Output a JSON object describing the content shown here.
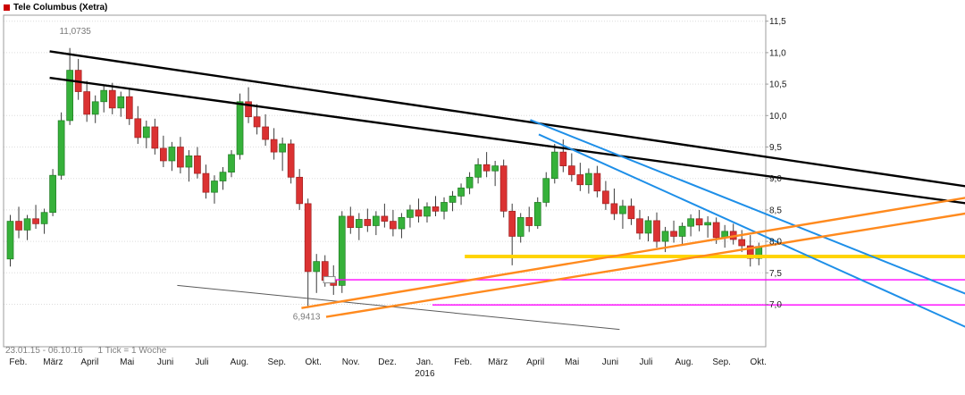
{
  "header": {
    "title": "Tele Columbus (Xetra)"
  },
  "footer": {
    "range": "23.01.15 - 06.10.16",
    "tick_info": "1 Tick = 1 Woche"
  },
  "chart_data": {
    "type": "candlestick",
    "instrument": "Tele Columbus",
    "exchange": "Xetra",
    "interval": "1 Woche",
    "date_range": {
      "start": "23.01.15",
      "end": "06.10.16"
    },
    "ohlc_format": [
      "open",
      "high",
      "low",
      "close"
    ],
    "y_axis": {
      "side": "right",
      "range": [
        6.35,
        11.58
      ],
      "ticks": [
        {
          "label": "11,5",
          "value": 11.5
        },
        {
          "label": "11,0",
          "value": 11.0
        },
        {
          "label": "10,5",
          "value": 10.5
        },
        {
          "label": "10,0",
          "value": 10.0
        },
        {
          "label": "9,5",
          "value": 9.5
        },
        {
          "label": "9,0",
          "value": 9.0
        },
        {
          "label": "8,5",
          "value": 8.5
        },
        {
          "label": "8,0",
          "value": 8.0
        },
        {
          "label": "7,5",
          "value": 7.5
        },
        {
          "label": "7,0",
          "value": 7.0
        }
      ]
    },
    "x_axis": {
      "months": [
        {
          "label": "Feb.",
          "week": 1.3
        },
        {
          "label": "März",
          "week": 5.4
        },
        {
          "label": "April",
          "week": 9.7
        },
        {
          "label": "Mai",
          "week": 14.1
        },
        {
          "label": "Juni",
          "week": 18.6
        },
        {
          "label": "Juli",
          "week": 22.9
        },
        {
          "label": "Aug.",
          "week": 27.3
        },
        {
          "label": "Sep.",
          "week": 31.7
        },
        {
          "label": "Okt.",
          "week": 36.0
        },
        {
          "label": "Nov.",
          "week": 40.4
        },
        {
          "label": "Dez.",
          "week": 44.7
        },
        {
          "label": "Jan.",
          "week": 49.1
        },
        {
          "label": "Feb.",
          "week": 53.6
        },
        {
          "label": "März",
          "week": 57.7
        },
        {
          "label": "April",
          "week": 62.1
        },
        {
          "label": "Mai",
          "week": 66.4
        },
        {
          "label": "Juni",
          "week": 70.9
        },
        {
          "label": "Juli",
          "week": 75.1
        },
        {
          "label": "Aug.",
          "week": 79.6
        },
        {
          "label": "Sep.",
          "week": 84.0
        },
        {
          "label": "Okt.",
          "week": 88.3
        }
      ],
      "year": {
        "label": "2016",
        "week": 49.1
      }
    },
    "annotations": {
      "high": {
        "text": "11,0735",
        "value": 11.0735,
        "week": 8.0,
        "price": 11.3
      },
      "low": {
        "text": "6,9413",
        "value": 6.9413,
        "week": 35.2,
        "price": 6.76
      }
    },
    "candles": [
      [
        7.72,
        8.42,
        7.6,
        8.32
      ],
      [
        8.32,
        8.55,
        8.05,
        8.18
      ],
      [
        8.18,
        8.42,
        8.02,
        8.36
      ],
      [
        8.36,
        8.58,
        8.2,
        8.28
      ],
      [
        8.28,
        8.52,
        8.12,
        8.46
      ],
      [
        8.46,
        9.15,
        8.4,
        9.05
      ],
      [
        9.05,
        10.05,
        8.98,
        9.92
      ],
      [
        9.92,
        11.0735,
        9.85,
        10.72
      ],
      [
        10.72,
        10.9,
        10.25,
        10.38
      ],
      [
        10.38,
        10.55,
        9.9,
        10.02
      ],
      [
        10.02,
        10.32,
        9.88,
        10.22
      ],
      [
        10.22,
        10.48,
        10.05,
        10.4
      ],
      [
        10.4,
        10.52,
        10.02,
        10.12
      ],
      [
        10.12,
        10.38,
        9.98,
        10.3
      ],
      [
        10.3,
        10.42,
        9.85,
        9.95
      ],
      [
        9.95,
        10.15,
        9.55,
        9.65
      ],
      [
        9.65,
        9.92,
        9.48,
        9.82
      ],
      [
        9.82,
        9.95,
        9.38,
        9.48
      ],
      [
        9.48,
        9.68,
        9.18,
        9.28
      ],
      [
        9.28,
        9.58,
        9.12,
        9.5
      ],
      [
        9.5,
        9.66,
        9.08,
        9.18
      ],
      [
        9.18,
        9.45,
        8.95,
        9.36
      ],
      [
        9.36,
        9.5,
        9.0,
        9.08
      ],
      [
        9.08,
        9.22,
        8.68,
        8.78
      ],
      [
        8.78,
        9.05,
        8.6,
        8.96
      ],
      [
        8.96,
        9.18,
        8.82,
        9.1
      ],
      [
        9.1,
        9.45,
        9.02,
        9.38
      ],
      [
        9.38,
        10.35,
        9.3,
        10.22
      ],
      [
        10.22,
        10.45,
        9.88,
        9.98
      ],
      [
        9.98,
        10.18,
        9.7,
        9.82
      ],
      [
        9.82,
        10.02,
        9.52,
        9.62
      ],
      [
        9.62,
        9.8,
        9.3,
        9.42
      ],
      [
        9.42,
        9.65,
        9.12,
        9.55
      ],
      [
        9.55,
        9.62,
        8.92,
        9.02
      ],
      [
        9.02,
        9.15,
        8.5,
        8.6
      ],
      [
        8.6,
        8.68,
        6.9413,
        7.52
      ],
      [
        7.52,
        7.8,
        7.18,
        7.68
      ],
      [
        7.68,
        7.78,
        7.28,
        7.38
      ],
      [
        7.38,
        7.62,
        7.15,
        7.3
      ],
      [
        7.3,
        8.48,
        7.18,
        8.4
      ],
      [
        8.4,
        8.55,
        8.12,
        8.22
      ],
      [
        8.22,
        8.45,
        8.02,
        8.35
      ],
      [
        8.35,
        8.52,
        8.15,
        8.25
      ],
      [
        8.25,
        8.48,
        8.1,
        8.4
      ],
      [
        8.4,
        8.6,
        8.22,
        8.32
      ],
      [
        8.32,
        8.5,
        8.08,
        8.2
      ],
      [
        8.2,
        8.45,
        8.05,
        8.38
      ],
      [
        8.38,
        8.58,
        8.22,
        8.5
      ],
      [
        8.5,
        8.68,
        8.3,
        8.4
      ],
      [
        8.4,
        8.62,
        8.3,
        8.55
      ],
      [
        8.55,
        8.72,
        8.4,
        8.48
      ],
      [
        8.48,
        8.7,
        8.35,
        8.62
      ],
      [
        8.62,
        8.8,
        8.48,
        8.72
      ],
      [
        8.72,
        8.92,
        8.58,
        8.85
      ],
      [
        8.85,
        9.1,
        8.75,
        9.02
      ],
      [
        9.02,
        9.32,
        8.92,
        9.22
      ],
      [
        9.22,
        9.42,
        9.02,
        9.12
      ],
      [
        9.12,
        9.28,
        8.88,
        9.2
      ],
      [
        9.2,
        9.3,
        8.38,
        8.48
      ],
      [
        8.48,
        8.6,
        7.62,
        8.08
      ],
      [
        8.08,
        8.45,
        7.98,
        8.38
      ],
      [
        8.38,
        8.55,
        8.15,
        8.25
      ],
      [
        8.25,
        8.7,
        8.2,
        8.62
      ],
      [
        8.62,
        9.1,
        8.55,
        9.0
      ],
      [
        9.0,
        9.55,
        8.92,
        9.42
      ],
      [
        9.42,
        9.62,
        9.1,
        9.2
      ],
      [
        9.2,
        9.4,
        8.95,
        9.06
      ],
      [
        9.06,
        9.25,
        8.8,
        8.9
      ],
      [
        8.9,
        9.16,
        8.76,
        9.08
      ],
      [
        9.08,
        9.2,
        8.7,
        8.8
      ],
      [
        8.8,
        8.96,
        8.5,
        8.6
      ],
      [
        8.6,
        8.84,
        8.34,
        8.44
      ],
      [
        8.44,
        8.66,
        8.2,
        8.56
      ],
      [
        8.56,
        8.68,
        8.26,
        8.36
      ],
      [
        8.36,
        8.5,
        8.03,
        8.13
      ],
      [
        8.13,
        8.4,
        8.0,
        8.33
      ],
      [
        8.33,
        8.46,
        7.9,
        8.0
      ],
      [
        8.0,
        8.23,
        7.83,
        8.16
      ],
      [
        8.16,
        8.33,
        7.98,
        8.08
      ],
      [
        8.08,
        8.3,
        7.93,
        8.24
      ],
      [
        8.24,
        8.43,
        8.08,
        8.36
      ],
      [
        8.36,
        8.5,
        8.16,
        8.26
      ],
      [
        8.26,
        8.4,
        8.06,
        8.3
      ],
      [
        8.3,
        8.38,
        7.96,
        8.06
      ],
      [
        8.06,
        8.26,
        7.9,
        8.16
      ],
      [
        8.16,
        8.28,
        7.95,
        8.03
      ],
      [
        8.03,
        8.18,
        7.83,
        7.93
      ],
      [
        7.93,
        8.1,
        7.6,
        7.73
      ],
      [
        7.73,
        7.98,
        7.62,
        7.92
      ]
    ],
    "overlays": {
      "trendlines": [
        {
          "name": "support-diagonal-thin",
          "color_key": "gray_line",
          "width": 1,
          "from": {
            "week": 20.0,
            "price": 7.3
          },
          "to": {
            "week": 72.0,
            "price": 6.6
          }
        },
        {
          "name": "black-channel-top",
          "color_key": "black_line",
          "width": 2.4,
          "from": {
            "week": 5.0,
            "price": 11.02
          },
          "to": {
            "week": 113.0,
            "price": 8.87
          }
        },
        {
          "name": "black-channel-bottom",
          "color_key": "black_line",
          "width": 2.4,
          "from": {
            "week": 5.0,
            "price": 10.6
          },
          "to": {
            "week": 113.0,
            "price": 8.6
          }
        },
        {
          "name": "blue-downtrend-1",
          "color_key": "blue_line",
          "width": 2,
          "from": {
            "week": 61.5,
            "price": 9.93
          },
          "to": {
            "week": 113.0,
            "price": 7.15
          }
        },
        {
          "name": "blue-downtrend-2",
          "color_key": "blue_line",
          "width": 2,
          "from": {
            "week": 62.5,
            "price": 9.7
          },
          "to": {
            "week": 113.0,
            "price": 6.62
          }
        },
        {
          "name": "orange-uptrend-1",
          "color_key": "orange_line",
          "width": 2.4,
          "from": {
            "week": 34.6,
            "price": 6.94
          },
          "to": {
            "week": 113.0,
            "price": 8.7
          }
        },
        {
          "name": "orange-uptrend-2",
          "color_key": "orange_line",
          "width": 2.4,
          "from": {
            "week": 37.5,
            "price": 6.8
          },
          "to": {
            "week": 113.0,
            "price": 8.45
          }
        }
      ],
      "horizontal_lines": [
        {
          "name": "yellow-horizontal-support",
          "color_key": "yellow_line",
          "width": 4,
          "price": 7.76,
          "from_week": 53.8,
          "to_week": 113.0
        },
        {
          "name": "magenta-horizontal-1",
          "color_key": "magenta_line",
          "width": 1.3,
          "price": 7.39,
          "from_week": 37.8,
          "to_week": 113.0
        },
        {
          "name": "magenta-horizontal-2",
          "color_key": "magenta_line",
          "width": 1.3,
          "price": 6.99,
          "from_week": 50.0,
          "to_week": 113.0
        }
      ],
      "handle": {
        "week": 37.2,
        "price": 7.39,
        "w": 13,
        "h": 7
      }
    },
    "colors": {
      "up": "#36b13a",
      "down": "#db3232",
      "up_border": "#1f7a22",
      "down_border": "#9e1f1f",
      "wick": "#3a3a3a",
      "frame": "#9c9c9c",
      "grid": "#dcdcdc",
      "axis_text": "#1a1a1a",
      "muted_text": "#7a7a7a",
      "black_line": "#000000",
      "blue_line": "#1e8fe8",
      "orange_line": "#ff8a1e",
      "yellow_line": "#ffd400",
      "magenta_line": "#ff00ff",
      "gray_line": "#5a5a5a",
      "marker": "#cc0000"
    }
  }
}
